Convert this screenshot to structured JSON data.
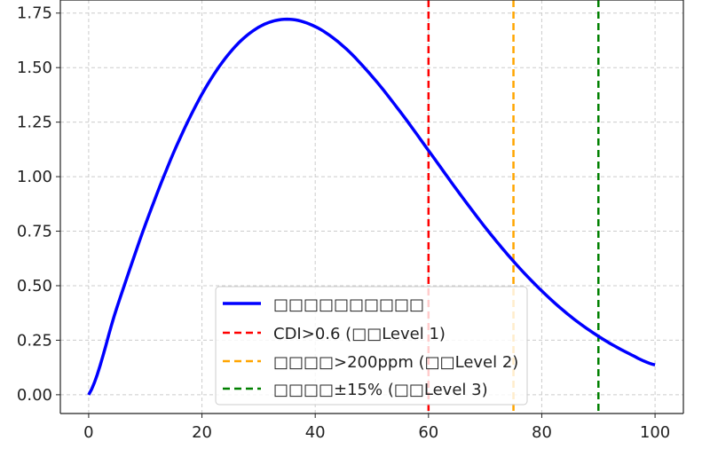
{
  "chart_data": {
    "type": "line",
    "title": "",
    "xlabel": "",
    "ylabel": "",
    "xlim": [
      -5,
      105
    ],
    "ylim": [
      -0.086,
      1.81
    ],
    "grid": true,
    "legend_placement": "lower center",
    "x_ticks": [
      "0",
      "20",
      "40",
      "60",
      "80",
      "100"
    ],
    "y_ticks": [
      "0.00",
      "0.25",
      "0.50",
      "0.75",
      "1.00",
      "1.25",
      "1.50",
      "1.75"
    ],
    "x_tick_values": [
      0,
      20,
      40,
      60,
      80,
      100
    ],
    "y_tick_values": [
      0,
      0.25,
      0.5,
      0.75,
      1.0,
      1.25,
      1.5,
      1.75
    ],
    "series": [
      {
        "name": "□□□□□□□□□□",
        "color": "#0000ff",
        "style": "solid",
        "x": [
          0,
          5,
          10,
          15,
          20,
          25,
          30,
          35,
          40,
          45,
          50,
          55,
          60,
          65,
          70,
          75,
          80,
          85,
          90,
          95,
          100
        ],
        "y": [
          0,
          0.401,
          0.779,
          1.11,
          1.378,
          1.571,
          1.685,
          1.722,
          1.688,
          1.597,
          1.461,
          1.298,
          1.12,
          0.94,
          0.768,
          0.612,
          0.476,
          0.361,
          0.268,
          0.194,
          0.137
        ]
      }
    ],
    "vlines": [
      {
        "name": "CDI>0.6 (□□Level 1)",
        "x": 60,
        "color": "#ff0000",
        "style": "dashed"
      },
      {
        "name": "□□□□>200ppm (□□Level 2)",
        "x": 75,
        "color": "#ffa500",
        "style": "dashed"
      },
      {
        "name": "□□□□±15% (□□Level 3)",
        "x": 90,
        "color": "#008000",
        "style": "dashed"
      }
    ]
  }
}
